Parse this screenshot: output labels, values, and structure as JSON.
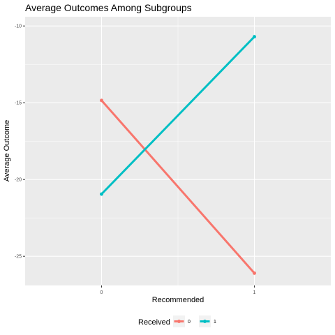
{
  "chart_data": {
    "type": "line",
    "title": "Average Outcomes Among Subgroups",
    "xlabel": "Recommended",
    "ylabel": "Average Outcome",
    "x": [
      "0",
      "1"
    ],
    "xlim": [
      -0.5,
      1.5
    ],
    "ylim": [
      -26.9,
      -9.4
    ],
    "y_ticks": [
      -10,
      -15,
      -20,
      -25
    ],
    "y_tick_labels": [
      "-10",
      "-15",
      "-20",
      "-25"
    ],
    "x_tick_labels": [
      "0",
      "1"
    ],
    "grid": true,
    "legend": {
      "title": "Received",
      "position": "bottom",
      "entries": [
        "0",
        "1"
      ]
    },
    "series": [
      {
        "name": "0",
        "color": "#F8766D",
        "values": [
          -14.85,
          -26.1
        ]
      },
      {
        "name": "1",
        "color": "#00BFC4",
        "values": [
          -20.95,
          -10.7
        ]
      }
    ],
    "panel_background": "#EBEBEB",
    "grid_color": "#FFFFFF"
  }
}
